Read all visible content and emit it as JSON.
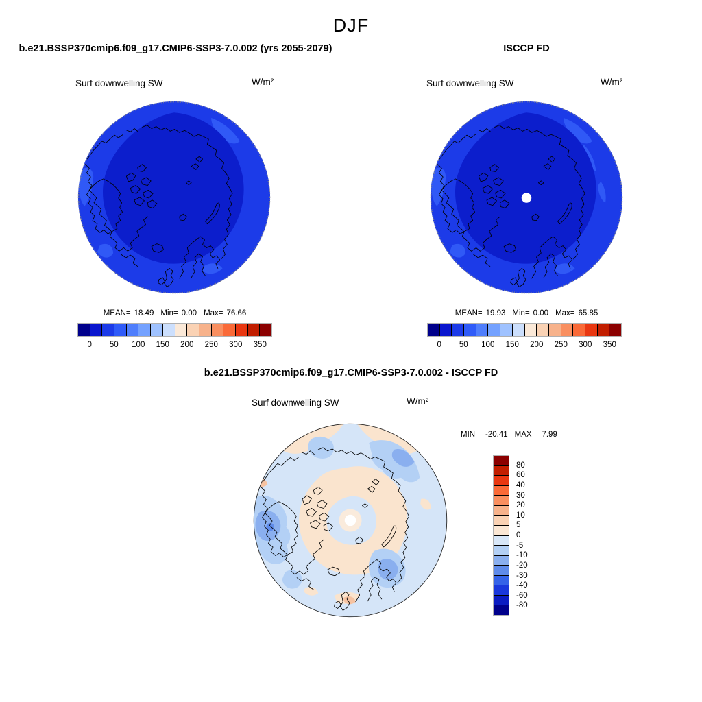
{
  "page": {
    "title": "DJF",
    "background": "#ffffff"
  },
  "model_panel": {
    "case_title": "b.e21.BSSP370cmip6.f09_g17.CMIP6-SSP3-7.0.002 (yrs 2055-2079)",
    "variable": "Surf downwelling SW",
    "units": "W/m²",
    "stats": {
      "mean_label": "MEAN=",
      "mean": "18.49",
      "min_label": "Min=",
      "min": "0.00",
      "max_label": "Max=",
      "max": "76.66"
    }
  },
  "obs_panel": {
    "case_title": "ISCCP FD",
    "variable": "Surf downwelling SW",
    "units": "W/m²",
    "stats": {
      "mean_label": "MEAN=",
      "mean": "19.93",
      "min_label": "Min=",
      "min": "0.00",
      "max_label": "Max=",
      "max": "65.85"
    }
  },
  "diff_panel": {
    "case_title": "b.e21.BSSP370cmip6.f09_g17.CMIP6-SSP3-7.0.002 - ISCCP FD",
    "variable": "Surf downwelling SW",
    "units": "W/m²",
    "stats": {
      "min_label": "MIN =",
      "min": "-20.41",
      "max_label": "MAX =",
      "max": "7.99"
    }
  },
  "abs_colorbar": {
    "tick_labels": [
      "0",
      "50",
      "100",
      "150",
      "200",
      "250",
      "300",
      "350"
    ],
    "colors": [
      "#00008B",
      "#0A16CE",
      "#1C3BE8",
      "#2F5BF8",
      "#4F7EFC",
      "#74A1FE",
      "#9FC2FF",
      "#CCDFFD",
      "#FBE9D8",
      "#FAD2B4",
      "#F7B28B",
      "#F98F60",
      "#FA6A38",
      "#E93711",
      "#C21E00",
      "#8B0000"
    ]
  },
  "diff_colorbar": {
    "labels": [
      "80",
      "60",
      "40",
      "30",
      "20",
      "10",
      "5",
      "0",
      "-5",
      "-10",
      "-20",
      "-30",
      "-40",
      "-60",
      "-80"
    ],
    "colors": [
      "#8B0000",
      "#C21E00",
      "#E93711",
      "#FA6A38",
      "#F98F60",
      "#F7B28B",
      "#FAD2B4",
      "#FBE7D4",
      "#D8E7F8",
      "#B3D0F5",
      "#8AAFEF",
      "#5F8BEA",
      "#3563E8",
      "#1A38DC",
      "#0B1CC2",
      "#00008B"
    ]
  },
  "map_colors": {
    "sw_inner": "#0C1ECC",
    "sw_outer": "#1C3BE8",
    "sw_light": "#3059F6",
    "diff_base": "#D5E5F8",
    "diff_pos": "#FAE4CE",
    "diff_salmon": "#F6C3A2",
    "diff_neg1": "#B3D0F5",
    "diff_neg2": "#8AAFEF",
    "diff_neg3": "#5F8BEA",
    "pole_ring": "#FAEBDC",
    "pole_hole": "#FFFFFF",
    "coastline": "#000000"
  },
  "chart_data": [
    {
      "type": "heatmap",
      "subtype": "polar_stereographic_contour_map",
      "panel": "model",
      "season": "DJF",
      "title": "b.e21.BSSP370cmip6.f09_g17.CMIP6-SSP3-7.0.002 (yrs 2055-2079)",
      "variable": "Surf downwelling SW",
      "units": "W/m²",
      "stats": {
        "mean": 18.49,
        "min": 0.0,
        "max": 76.66
      },
      "contour_levels": [
        0,
        25,
        50,
        75,
        100,
        125,
        150,
        175,
        200,
        225,
        250,
        275,
        300,
        325,
        350
      ],
      "colorbar_ticks": [
        0,
        50,
        100,
        150,
        200,
        250,
        300,
        350
      ],
      "legend_position": "below"
    },
    {
      "type": "heatmap",
      "subtype": "polar_stereographic_contour_map",
      "panel": "observations",
      "season": "DJF",
      "title": "ISCCP FD",
      "variable": "Surf downwelling SW",
      "units": "W/m²",
      "stats": {
        "mean": 19.93,
        "min": 0.0,
        "max": 65.85
      },
      "contour_levels": [
        0,
        25,
        50,
        75,
        100,
        125,
        150,
        175,
        200,
        225,
        250,
        275,
        300,
        325,
        350
      ],
      "colorbar_ticks": [
        0,
        50,
        100,
        150,
        200,
        250,
        300,
        350
      ],
      "legend_position": "below"
    },
    {
      "type": "heatmap",
      "subtype": "polar_stereographic_contour_map",
      "panel": "difference",
      "season": "DJF",
      "title": "b.e21.BSSP370cmip6.f09_g17.CMIP6-SSP3-7.0.002 - ISCCP FD",
      "variable": "Surf downwelling SW",
      "units": "W/m²",
      "stats": {
        "min": -20.41,
        "max": 7.99
      },
      "contour_levels": [
        -80,
        -60,
        -40,
        -30,
        -20,
        -10,
        -5,
        0,
        5,
        10,
        20,
        30,
        40,
        60,
        80
      ],
      "legend_position": "right"
    }
  ]
}
